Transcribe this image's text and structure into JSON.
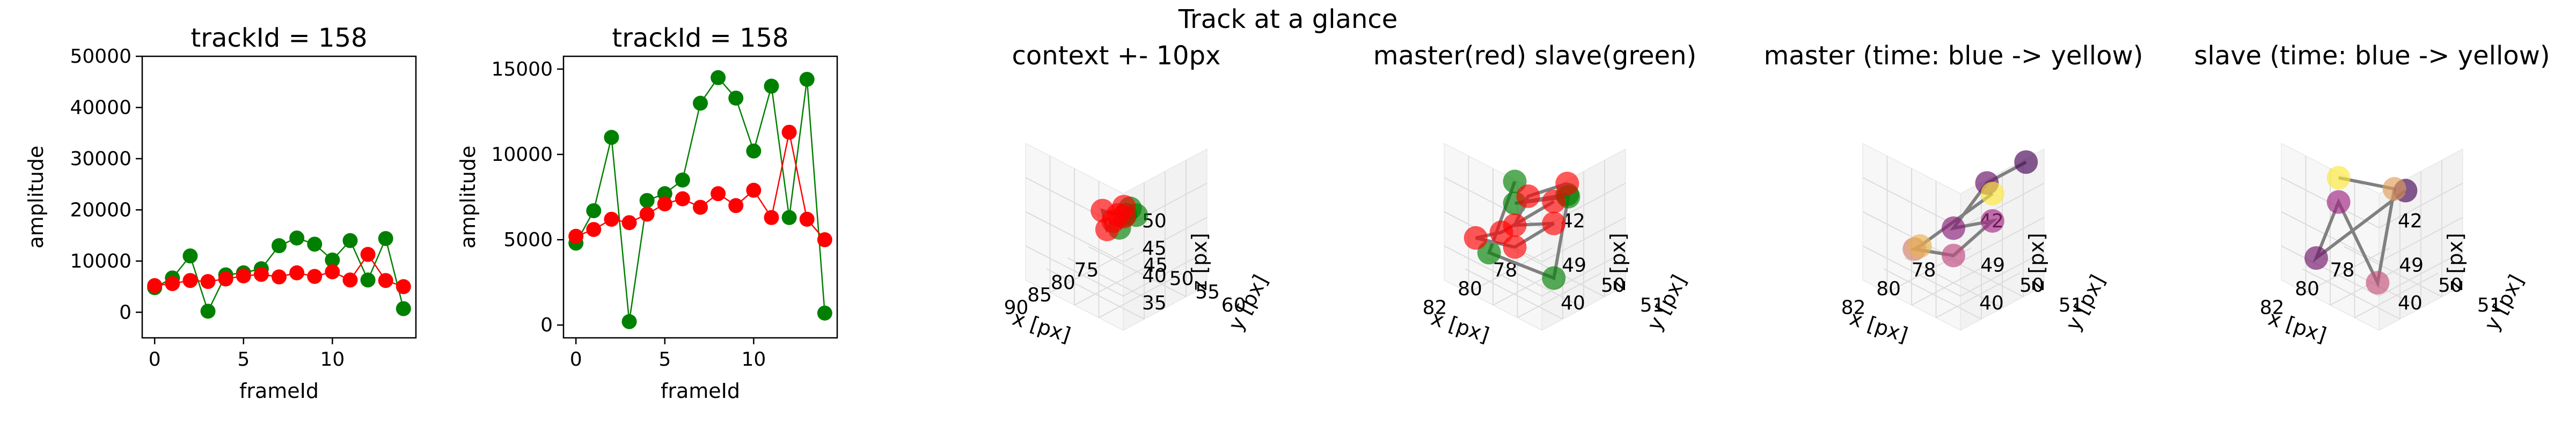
{
  "figure": {
    "suptitle": "Track at a glance",
    "colors": {
      "master": "#ff0000",
      "slave": "#008000",
      "path": "#808080",
      "pane": "#f2f2f2",
      "grid": "#dcdcdc"
    }
  },
  "chart_data": [
    {
      "type": "line",
      "title": "trackId = 158",
      "xlabel": "frameId",
      "ylabel": "amplitude",
      "xlim": [
        -0.7,
        14.7
      ],
      "ylim": [
        -5000,
        50000
      ],
      "xticks": [
        "0",
        "5",
        "10"
      ],
      "yticks": [
        "0",
        "10000",
        "20000",
        "30000",
        "40000",
        "50000"
      ],
      "series": [
        {
          "color": "#008000",
          "x": [
            0,
            1,
            2,
            3,
            4,
            5,
            6,
            7,
            8,
            9,
            10,
            11,
            12,
            13,
            14
          ],
          "values": [
            4800,
            6700,
            11000,
            200,
            7300,
            7700,
            8500,
            13000,
            14500,
            13300,
            10200,
            14000,
            6300,
            14400,
            700
          ]
        },
        {
          "color": "#ff0000",
          "x": [
            0,
            1,
            2,
            3,
            4,
            5,
            6,
            7,
            8,
            9,
            10,
            11,
            12,
            13,
            14
          ],
          "values": [
            5200,
            5600,
            6200,
            6000,
            6500,
            7100,
            7400,
            6900,
            7700,
            7000,
            7900,
            6300,
            11300,
            6200,
            5000
          ]
        }
      ]
    },
    {
      "type": "line",
      "title": "trackId = 158",
      "xlabel": "frameId",
      "ylabel": "amplitude",
      "xlim": [
        -0.7,
        14.7
      ],
      "ylim": [
        -750,
        15750
      ],
      "xticks": [
        "0",
        "5",
        "10"
      ],
      "yticks": [
        "0",
        "5000",
        "10000",
        "15000"
      ],
      "series": [
        {
          "color": "#008000",
          "x": [
            0,
            1,
            2,
            3,
            4,
            5,
            6,
            7,
            8,
            9,
            10,
            11,
            12,
            13,
            14
          ],
          "values": [
            4800,
            6700,
            11000,
            200,
            7300,
            7700,
            8500,
            13000,
            14500,
            13300,
            10200,
            14000,
            6300,
            14400,
            700
          ]
        },
        {
          "color": "#ff0000",
          "x": [
            0,
            1,
            2,
            3,
            4,
            5,
            6,
            7,
            8,
            9,
            10,
            11,
            12,
            13,
            14
          ],
          "values": [
            5200,
            5600,
            6200,
            6000,
            6500,
            7100,
            7400,
            6900,
            7700,
            7000,
            7900,
            6300,
            11300,
            6200,
            5000
          ]
        }
      ]
    },
    {
      "type": "scatter",
      "title": "context +- 10px",
      "xlabel": "x [px]",
      "ylabel": "y [px]",
      "zlabel": "z [px]",
      "xticks": [
        "75",
        "80",
        "85",
        "90"
      ],
      "yticks": [
        "45",
        "50",
        "55",
        "60"
      ],
      "zticks": [
        "35",
        "40",
        "45",
        "50"
      ],
      "series": [
        {
          "color": "#008000",
          "points": [
            [
              79,
              51,
              38
            ],
            [
              80,
              52,
              41
            ],
            [
              80,
              51,
              36
            ],
            [
              79,
              52,
              39
            ]
          ]
        },
        {
          "color": "#ff0000",
          "points": [
            [
              81,
              52,
              40
            ],
            [
              81,
              51,
              38
            ],
            [
              82,
              52,
              41
            ],
            [
              81,
              50,
              39
            ],
            [
              82,
              51,
              37
            ],
            [
              81,
              52,
              42
            ]
          ]
        }
      ]
    },
    {
      "type": "scatter",
      "title": "master(red) slave(green)",
      "xlabel": "x [px]",
      "ylabel": "y [px]",
      "zlabel": "z [px]",
      "xticks": [
        "78",
        "80",
        "82"
      ],
      "yticks": [
        "49",
        "50",
        "51"
      ],
      "zticks": [
        "40",
        "42"
      ],
      "series": [
        {
          "color": "#008000",
          "points": [
            [
              80,
              51,
              43
            ],
            [
              81,
              50,
              42
            ],
            [
              77,
              50,
              41
            ],
            [
              81,
              51,
              39.5
            ],
            [
              80,
              49,
              38.5
            ],
            [
              81,
              50,
              43
            ]
          ]
        },
        {
          "color": "#ff0000",
          "points": [
            [
              80,
              51,
              43.5
            ],
            [
              80,
              50,
              42
            ],
            [
              81,
              50,
              41
            ],
            [
              81,
              51,
              42
            ],
            [
              81,
              50,
              40
            ],
            [
              81,
              49,
              39.5
            ],
            [
              82,
              50,
              41
            ],
            [
              81,
              51,
              43
            ]
          ]
        }
      ]
    },
    {
      "type": "scatter",
      "title": "master (time: blue -> yellow)",
      "xlabel": "x [px]",
      "ylabel": "y [px]",
      "zlabel": "z [px]",
      "xticks": [
        "78",
        "80",
        "82"
      ],
      "yticks": [
        "49",
        "50",
        "51"
      ],
      "zticks": [
        "40",
        "42"
      ],
      "series": [
        {
          "color": "gradient",
          "points": [
            [
              80,
              51,
              43.5
            ],
            [
              80,
              50,
              42
            ],
            [
              81,
              50,
              41
            ],
            [
              81,
              51,
              42
            ],
            [
              81,
              50,
              40
            ],
            [
              81,
              49,
              39.5
            ],
            [
              82,
              50,
              41
            ],
            [
              81,
              51,
              43
            ]
          ]
        }
      ]
    },
    {
      "type": "scatter",
      "title": "slave (time: blue -> yellow)",
      "xlabel": "x [px]",
      "ylabel": "y [px]",
      "zlabel": "z [px]",
      "xticks": [
        "78",
        "80",
        "82"
      ],
      "yticks": [
        "49",
        "50",
        "51"
      ],
      "zticks": [
        "40",
        "42"
      ],
      "series": [
        {
          "color": "gradient",
          "points": [
            [
              77,
              50,
              41
            ],
            [
              80,
              49,
              38.5
            ],
            [
              81,
              50,
              42
            ],
            [
              81,
              51,
              39.5
            ],
            [
              80,
              51,
              43
            ],
            [
              81,
              50,
              43
            ]
          ]
        }
      ]
    }
  ]
}
